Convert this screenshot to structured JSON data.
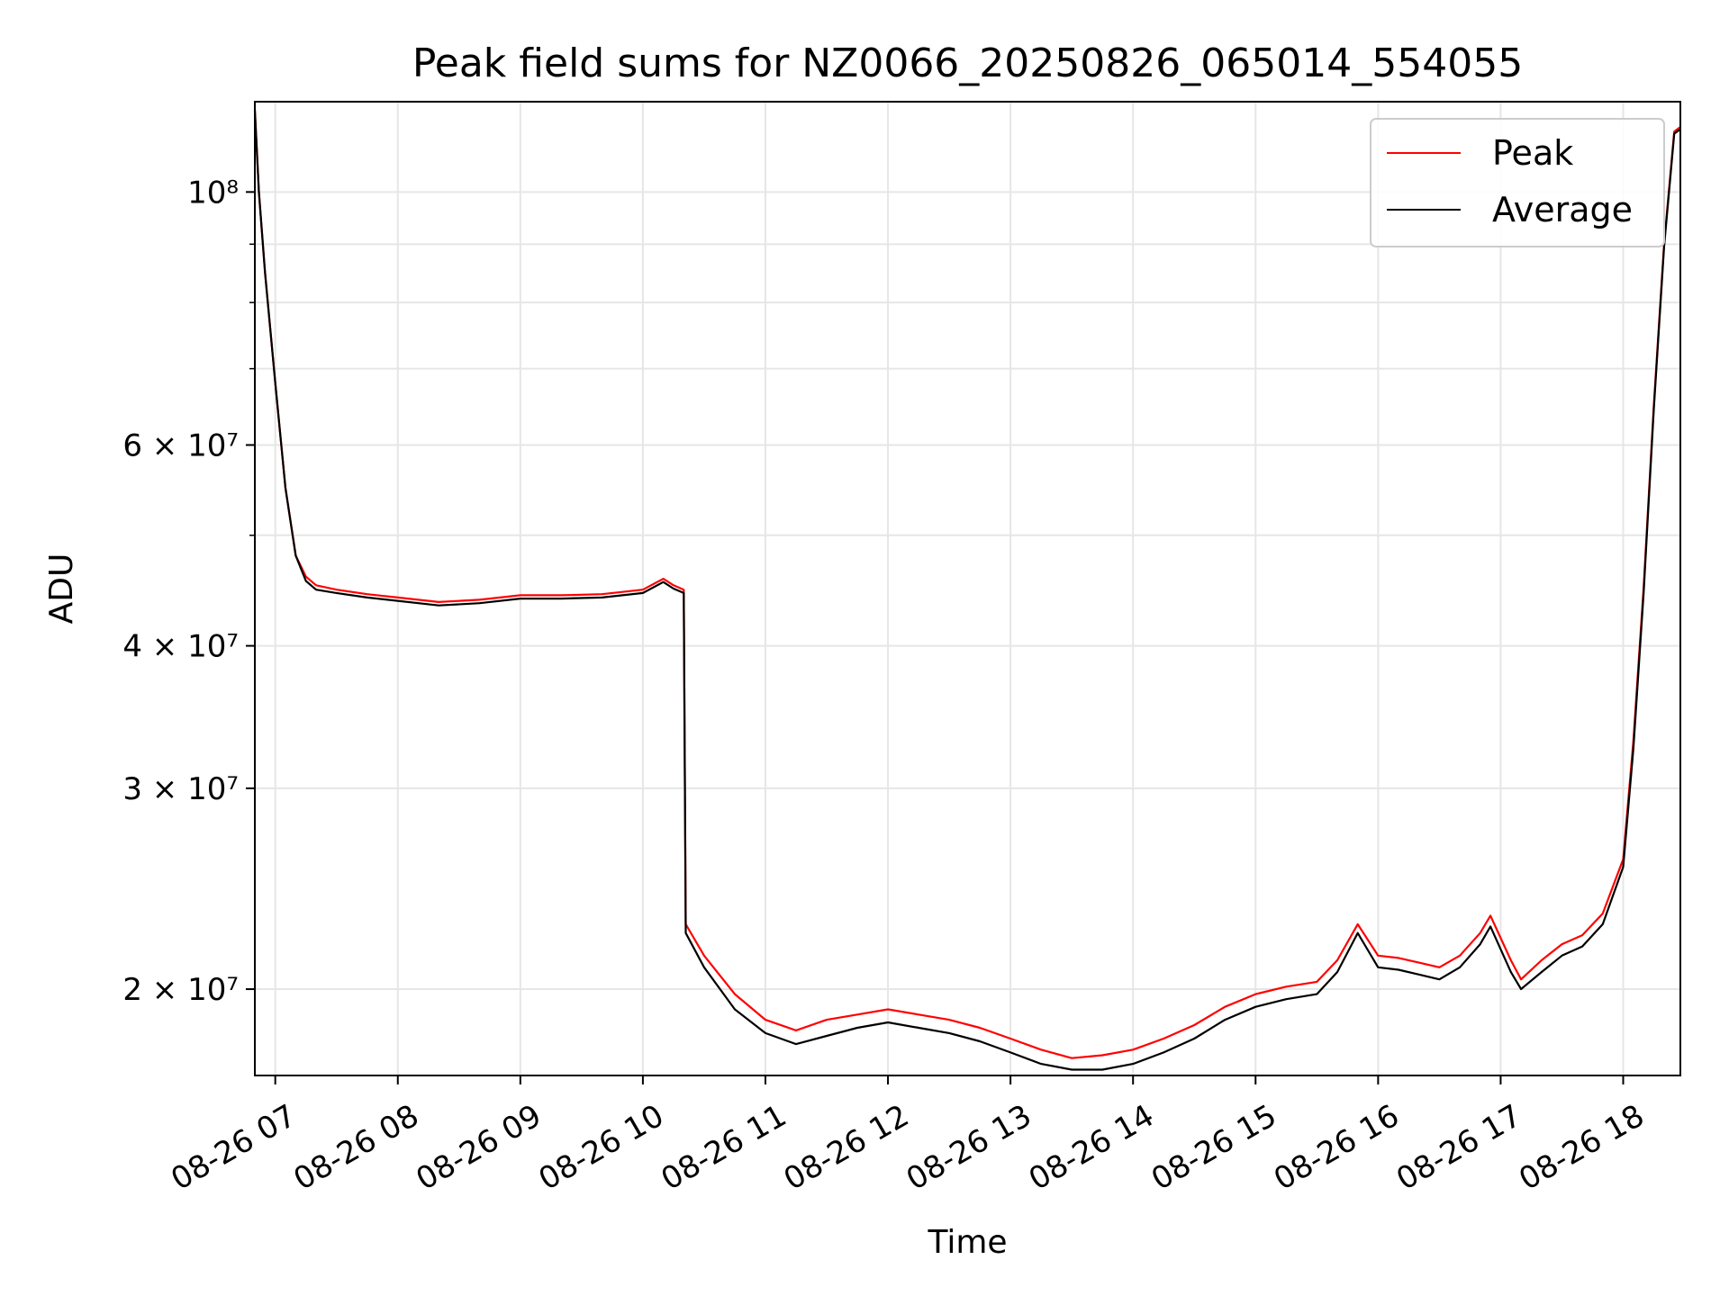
{
  "chart_data": {
    "type": "line",
    "title": "Peak field sums for NZ0066_20250826_065014_554055",
    "xlabel": "Time",
    "ylabel": "ADU",
    "y_scale": "log",
    "ylim": [
      16800000,
      120000000
    ],
    "xlim": [
      "2025-08-26 06:50",
      "2025-08-26 18:28"
    ],
    "grid": true,
    "legend_position": "top-right",
    "x_ticks": [
      {
        "value": "2025-08-26 07:00",
        "label": "08-26 07"
      },
      {
        "value": "2025-08-26 08:00",
        "label": "08-26 08"
      },
      {
        "value": "2025-08-26 09:00",
        "label": "08-26 09"
      },
      {
        "value": "2025-08-26 10:00",
        "label": "08-26 10"
      },
      {
        "value": "2025-08-26 11:00",
        "label": "08-26 11"
      },
      {
        "value": "2025-08-26 12:00",
        "label": "08-26 12"
      },
      {
        "value": "2025-08-26 13:00",
        "label": "08-26 13"
      },
      {
        "value": "2025-08-26 14:00",
        "label": "08-26 14"
      },
      {
        "value": "2025-08-26 15:00",
        "label": "08-26 15"
      },
      {
        "value": "2025-08-26 16:00",
        "label": "08-26 16"
      },
      {
        "value": "2025-08-26 17:00",
        "label": "08-26 17"
      },
      {
        "value": "2025-08-26 18:00",
        "label": "08-26 18"
      }
    ],
    "y_major_ticks": [
      {
        "value": 20000000,
        "label": "2 × 10⁷"
      },
      {
        "value": 30000000,
        "label": "3 × 10⁷"
      },
      {
        "value": 40000000,
        "label": "4 × 10⁷"
      },
      {
        "value": 60000000,
        "label": "6 × 10⁷"
      },
      {
        "value": 100000000,
        "label": "10⁸"
      }
    ],
    "y_minor_gridlines": [
      50000000,
      70000000,
      80000000,
      90000000
    ],
    "series": [
      {
        "name": "Peak",
        "color": "#ff0000",
        "x": [
          "2025-08-26 06:50",
          "2025-08-26 06:52",
          "2025-08-26 06:55",
          "2025-08-26 07:00",
          "2025-08-26 07:05",
          "2025-08-26 07:10",
          "2025-08-26 07:15",
          "2025-08-26 07:20",
          "2025-08-26 07:30",
          "2025-08-26 07:45",
          "2025-08-26 08:00",
          "2025-08-26 08:20",
          "2025-08-26 08:40",
          "2025-08-26 09:00",
          "2025-08-26 09:20",
          "2025-08-26 09:40",
          "2025-08-26 10:00",
          "2025-08-26 10:10",
          "2025-08-26 10:15",
          "2025-08-26 10:20",
          "2025-08-26 10:21",
          "2025-08-26 10:30",
          "2025-08-26 10:45",
          "2025-08-26 11:00",
          "2025-08-26 11:15",
          "2025-08-26 11:30",
          "2025-08-26 11:45",
          "2025-08-26 12:00",
          "2025-08-26 12:15",
          "2025-08-26 12:30",
          "2025-08-26 12:45",
          "2025-08-26 13:00",
          "2025-08-26 13:15",
          "2025-08-26 13:30",
          "2025-08-26 13:45",
          "2025-08-26 14:00",
          "2025-08-26 14:15",
          "2025-08-26 14:30",
          "2025-08-26 14:45",
          "2025-08-26 15:00",
          "2025-08-26 15:15",
          "2025-08-26 15:30",
          "2025-08-26 15:40",
          "2025-08-26 15:50",
          "2025-08-26 16:00",
          "2025-08-26 16:10",
          "2025-08-26 16:20",
          "2025-08-26 16:30",
          "2025-08-26 16:40",
          "2025-08-26 16:50",
          "2025-08-26 16:55",
          "2025-08-26 17:05",
          "2025-08-26 17:10",
          "2025-08-26 17:20",
          "2025-08-26 17:30",
          "2025-08-26 17:40",
          "2025-08-26 17:50",
          "2025-08-26 18:00",
          "2025-08-26 18:05",
          "2025-08-26 18:10",
          "2025-08-26 18:15",
          "2025-08-26 18:20",
          "2025-08-26 18:25",
          "2025-08-26 18:28"
        ],
        "y": [
          118000000,
          100000000,
          85000000,
          68000000,
          55000000,
          48000000,
          46000000,
          45200000,
          44800000,
          44400000,
          44100000,
          43700000,
          43900000,
          44300000,
          44300000,
          44400000,
          44800000,
          45800000,
          45200000,
          44800000,
          22800000,
          21400000,
          19800000,
          18800000,
          18400000,
          18800000,
          19000000,
          19200000,
          19000000,
          18800000,
          18500000,
          18100000,
          17700000,
          17400000,
          17500000,
          17700000,
          18100000,
          18600000,
          19300000,
          19800000,
          20100000,
          20300000,
          21200000,
          22800000,
          21400000,
          21300000,
          21100000,
          20900000,
          21400000,
          22400000,
          23200000,
          21200000,
          20400000,
          21200000,
          21900000,
          22300000,
          23300000,
          26000000,
          33000000,
          45000000,
          65000000,
          90000000,
          113000000,
          114000000
        ]
      },
      {
        "name": "Average",
        "color": "#000000",
        "x": [
          "2025-08-26 06:50",
          "2025-08-26 06:52",
          "2025-08-26 06:55",
          "2025-08-26 07:00",
          "2025-08-26 07:05",
          "2025-08-26 07:10",
          "2025-08-26 07:15",
          "2025-08-26 07:20",
          "2025-08-26 07:30",
          "2025-08-26 07:45",
          "2025-08-26 08:00",
          "2025-08-26 08:20",
          "2025-08-26 08:40",
          "2025-08-26 09:00",
          "2025-08-26 09:20",
          "2025-08-26 09:40",
          "2025-08-26 10:00",
          "2025-08-26 10:10",
          "2025-08-26 10:15",
          "2025-08-26 10:20",
          "2025-08-26 10:21",
          "2025-08-26 10:30",
          "2025-08-26 10:45",
          "2025-08-26 11:00",
          "2025-08-26 11:15",
          "2025-08-26 11:30",
          "2025-08-26 11:45",
          "2025-08-26 12:00",
          "2025-08-26 12:15",
          "2025-08-26 12:30",
          "2025-08-26 12:45",
          "2025-08-26 13:00",
          "2025-08-26 13:15",
          "2025-08-26 13:30",
          "2025-08-26 13:45",
          "2025-08-26 14:00",
          "2025-08-26 14:15",
          "2025-08-26 14:30",
          "2025-08-26 14:45",
          "2025-08-26 15:00",
          "2025-08-26 15:15",
          "2025-08-26 15:30",
          "2025-08-26 15:40",
          "2025-08-26 15:50",
          "2025-08-26 16:00",
          "2025-08-26 16:10",
          "2025-08-26 16:20",
          "2025-08-26 16:30",
          "2025-08-26 16:40",
          "2025-08-26 16:50",
          "2025-08-26 16:55",
          "2025-08-26 17:05",
          "2025-08-26 17:10",
          "2025-08-26 17:20",
          "2025-08-26 17:30",
          "2025-08-26 17:40",
          "2025-08-26 17:50",
          "2025-08-26 18:00",
          "2025-08-26 18:05",
          "2025-08-26 18:10",
          "2025-08-26 18:15",
          "2025-08-26 18:20",
          "2025-08-26 18:25",
          "2025-08-26 18:28"
        ],
        "y": [
          118000000,
          100000000,
          85000000,
          68000000,
          55000000,
          48000000,
          45600000,
          44800000,
          44500000,
          44100000,
          43800000,
          43400000,
          43600000,
          44000000,
          44000000,
          44100000,
          44500000,
          45500000,
          44900000,
          44500000,
          22400000,
          20900000,
          19200000,
          18300000,
          17900000,
          18200000,
          18500000,
          18700000,
          18500000,
          18300000,
          18000000,
          17600000,
          17200000,
          17000000,
          17000000,
          17200000,
          17600000,
          18100000,
          18800000,
          19300000,
          19600000,
          19800000,
          20700000,
          22400000,
          20900000,
          20800000,
          20600000,
          20400000,
          20900000,
          21900000,
          22700000,
          20700000,
          20000000,
          20700000,
          21400000,
          21800000,
          22800000,
          25600000,
          32500000,
          44500000,
          64500000,
          89500000,
          112500000,
          113500000
        ]
      }
    ]
  }
}
